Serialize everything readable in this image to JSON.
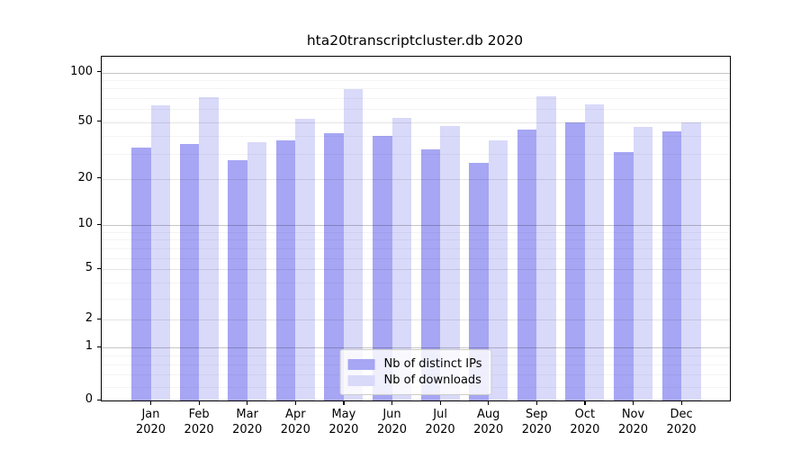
{
  "chart_data": {
    "type": "bar",
    "title": "hta20transcriptcluster.db 2020",
    "categories": [
      "Jan 2020",
      "Feb 2020",
      "Mar 2020",
      "Apr 2020",
      "May 2020",
      "Jun 2020",
      "Jul 2020",
      "Aug 2020",
      "Sep 2020",
      "Oct 2020",
      "Nov 2020",
      "Dec 2020"
    ],
    "series": [
      {
        "name": "Nb of distinct IPs",
        "color": "#a6a6f4",
        "values": [
          33,
          35,
          27,
          37,
          42,
          40,
          32,
          26,
          44,
          50,
          31,
          43
        ]
      },
      {
        "name": "Nb of downloads",
        "color": "#d9d9fa",
        "values": [
          63,
          71,
          36,
          52,
          79,
          53,
          47,
          37,
          72,
          64,
          46,
          50
        ]
      }
    ],
    "yscale": "log1p",
    "yticks": [
      0,
      1,
      2,
      5,
      10,
      20,
      50,
      100
    ],
    "ylim": [
      0,
      123
    ],
    "grid": true,
    "legend_position": "lower center",
    "text_color": "#000000",
    "axis_color": "#000000"
  }
}
